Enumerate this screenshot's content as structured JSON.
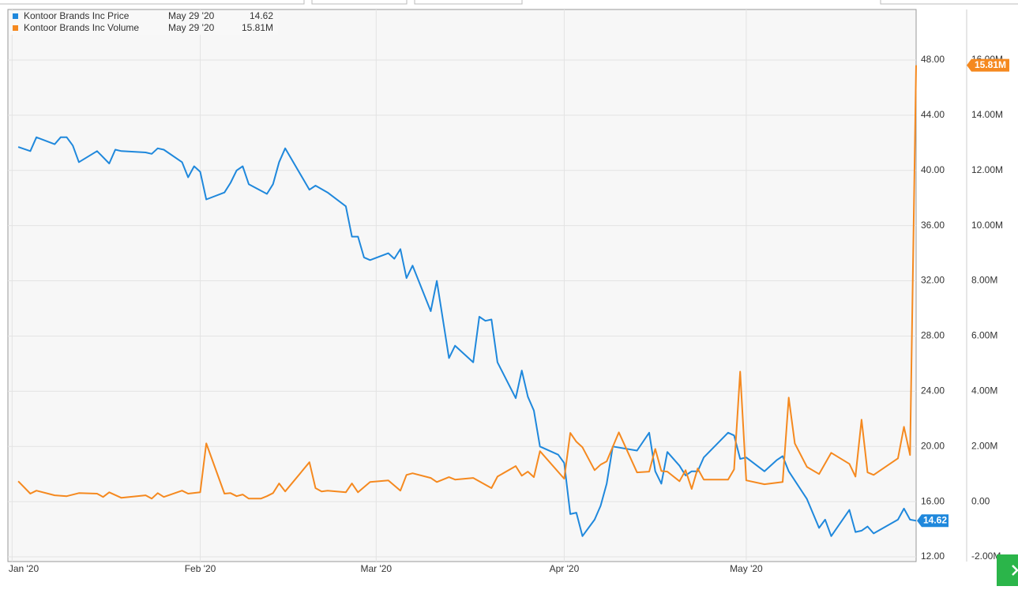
{
  "chart_data": {
    "type": "line",
    "xlim": [
      -0.7,
      149
    ],
    "xticks": [
      {
        "value": 0,
        "label": "Jan '20"
      },
      {
        "value": 31,
        "label": "Feb '20"
      },
      {
        "value": 60,
        "label": "Mar '20"
      },
      {
        "value": 91,
        "label": "Apr '20"
      },
      {
        "value": 121,
        "label": "May '20"
      }
    ],
    "ylim": [
      11.66,
      51.66
    ],
    "yticks": [
      {
        "value": 12,
        "label": "12.00"
      },
      {
        "value": 16,
        "label": "16.00"
      },
      {
        "value": 20,
        "label": "20.00"
      },
      {
        "value": 24,
        "label": "24.00"
      },
      {
        "value": 28,
        "label": "28.00"
      },
      {
        "value": 32,
        "label": "32.00"
      },
      {
        "value": 36,
        "label": "36.00"
      },
      {
        "value": 40,
        "label": "40.00"
      },
      {
        "value": 44,
        "label": "44.00"
      },
      {
        "value": 48,
        "label": "48.00"
      }
    ],
    "y2lim": [
      -2.17,
      17.83
    ],
    "y2ticks": [
      {
        "value": -2,
        "label": "-2.00M"
      },
      {
        "value": 0,
        "label": "0.00"
      },
      {
        "value": 2,
        "label": "2.00M"
      },
      {
        "value": 4,
        "label": "4.00M"
      },
      {
        "value": 6,
        "label": "6.00M"
      },
      {
        "value": 8,
        "label": "8.00M"
      },
      {
        "value": 10,
        "label": "10.00M"
      },
      {
        "value": 12,
        "label": "12.00M"
      },
      {
        "value": 14,
        "label": "14.00M"
      },
      {
        "value": 16,
        "label": "16.00M"
      }
    ],
    "grid": true,
    "series": [
      {
        "name": "Kontoor Brands Inc Price",
        "color": "#1f88dc",
        "last_date": "May 29 '20",
        "x": [
          1,
          3,
          4,
          7,
          8,
          9,
          10,
          11,
          14,
          16,
          17,
          18,
          22,
          23,
          24,
          25,
          28,
          29,
          30,
          31,
          32,
          35,
          36,
          37,
          38,
          39,
          42,
          43,
          44,
          45,
          49,
          50,
          52,
          55,
          56,
          57,
          58,
          59,
          62,
          63,
          64,
          65,
          66,
          69,
          70,
          72,
          73,
          76,
          77,
          78,
          79,
          80,
          83,
          84,
          85,
          86,
          87,
          90,
          91,
          92,
          93,
          94,
          96,
          97,
          98,
          99,
          103,
          105,
          106,
          107,
          108,
          110,
          111,
          112,
          113,
          114,
          118,
          119,
          120,
          121,
          124,
          126,
          127,
          128,
          131,
          133,
          134,
          135,
          138,
          139,
          140,
          141,
          142,
          146,
          147,
          148,
          149
        ],
        "values": [
          41.7,
          41.4,
          42.4,
          41.9,
          42.4,
          42.4,
          41.8,
          40.6,
          41.4,
          40.5,
          41.5,
          41.4,
          41.3,
          41.2,
          41.6,
          41.5,
          40.6,
          39.5,
          40.3,
          39.9,
          37.9,
          38.4,
          39.1,
          40.0,
          40.3,
          39.0,
          38.3,
          39.0,
          40.6,
          41.6,
          38.6,
          38.9,
          38.4,
          37.4,
          35.2,
          35.2,
          33.7,
          33.5,
          34.0,
          33.6,
          34.3,
          32.2,
          33.1,
          29.8,
          32.0,
          26.4,
          27.3,
          26.1,
          29.4,
          29.1,
          29.2,
          26.1,
          23.5,
          25.5,
          23.6,
          22.6,
          20.0,
          19.4,
          18.8,
          15.1,
          15.2,
          13.5,
          14.7,
          15.7,
          17.3,
          20.0,
          19.7,
          21.0,
          18.2,
          17.3,
          19.6,
          18.6,
          17.9,
          18.2,
          18.2,
          19.2,
          21.0,
          20.8,
          19.1,
          19.2,
          18.2,
          19.0,
          19.3,
          18.2,
          16.2,
          14.1,
          14.7,
          13.5,
          15.4,
          13.8,
          13.9,
          14.2,
          13.7,
          14.7,
          15.5,
          14.7,
          14.62
        ]
      },
      {
        "name": "Kontoor Brands Inc Volume",
        "color": "#f5891f",
        "axis": "y2",
        "last_date": "May 29 '20",
        "last_label": "15.81M",
        "x": [
          1,
          3,
          4,
          7,
          9,
          11,
          14,
          15,
          16,
          18,
          22,
          23,
          24,
          25,
          28,
          29,
          31,
          32,
          35,
          36,
          37,
          38,
          39,
          41,
          42,
          43,
          44,
          45,
          49,
          50,
          51,
          52,
          55,
          56,
          57,
          59,
          62,
          64,
          65,
          66,
          69,
          70,
          72,
          73,
          76,
          79,
          80,
          83,
          84,
          85,
          86,
          87,
          91,
          92,
          93,
          94,
          96,
          97,
          98,
          100,
          103,
          105,
          106,
          107,
          108,
          110,
          111,
          112,
          113,
          114,
          118,
          119,
          120,
          121,
          124,
          127,
          128,
          129,
          131,
          133,
          135,
          138,
          139,
          140,
          141,
          142,
          146,
          147,
          148,
          149
        ],
        "values": [
          0.74,
          0.29,
          0.4,
          0.23,
          0.2,
          0.31,
          0.29,
          0.17,
          0.34,
          0.14,
          0.23,
          0.11,
          0.31,
          0.17,
          0.4,
          0.29,
          0.34,
          2.11,
          0.29,
          0.31,
          0.2,
          0.26,
          0.11,
          0.11,
          0.2,
          0.31,
          0.66,
          0.37,
          1.43,
          0.49,
          0.37,
          0.4,
          0.34,
          0.66,
          0.34,
          0.71,
          0.77,
          0.4,
          0.97,
          1.03,
          0.86,
          0.71,
          0.89,
          0.8,
          0.86,
          0.49,
          0.91,
          1.29,
          0.94,
          1.09,
          0.89,
          1.83,
          0.83,
          2.49,
          2.17,
          1.97,
          1.14,
          1.34,
          1.46,
          2.51,
          1.06,
          1.09,
          1.91,
          1.11,
          1.09,
          0.74,
          1.14,
          0.46,
          1.2,
          0.8,
          0.8,
          1.17,
          4.71,
          0.77,
          0.63,
          0.71,
          3.77,
          2.11,
          1.26,
          1.0,
          1.77,
          1.37,
          0.91,
          2.97,
          1.06,
          0.97,
          1.57,
          2.71,
          1.69,
          15.81
        ]
      }
    ]
  }
}
